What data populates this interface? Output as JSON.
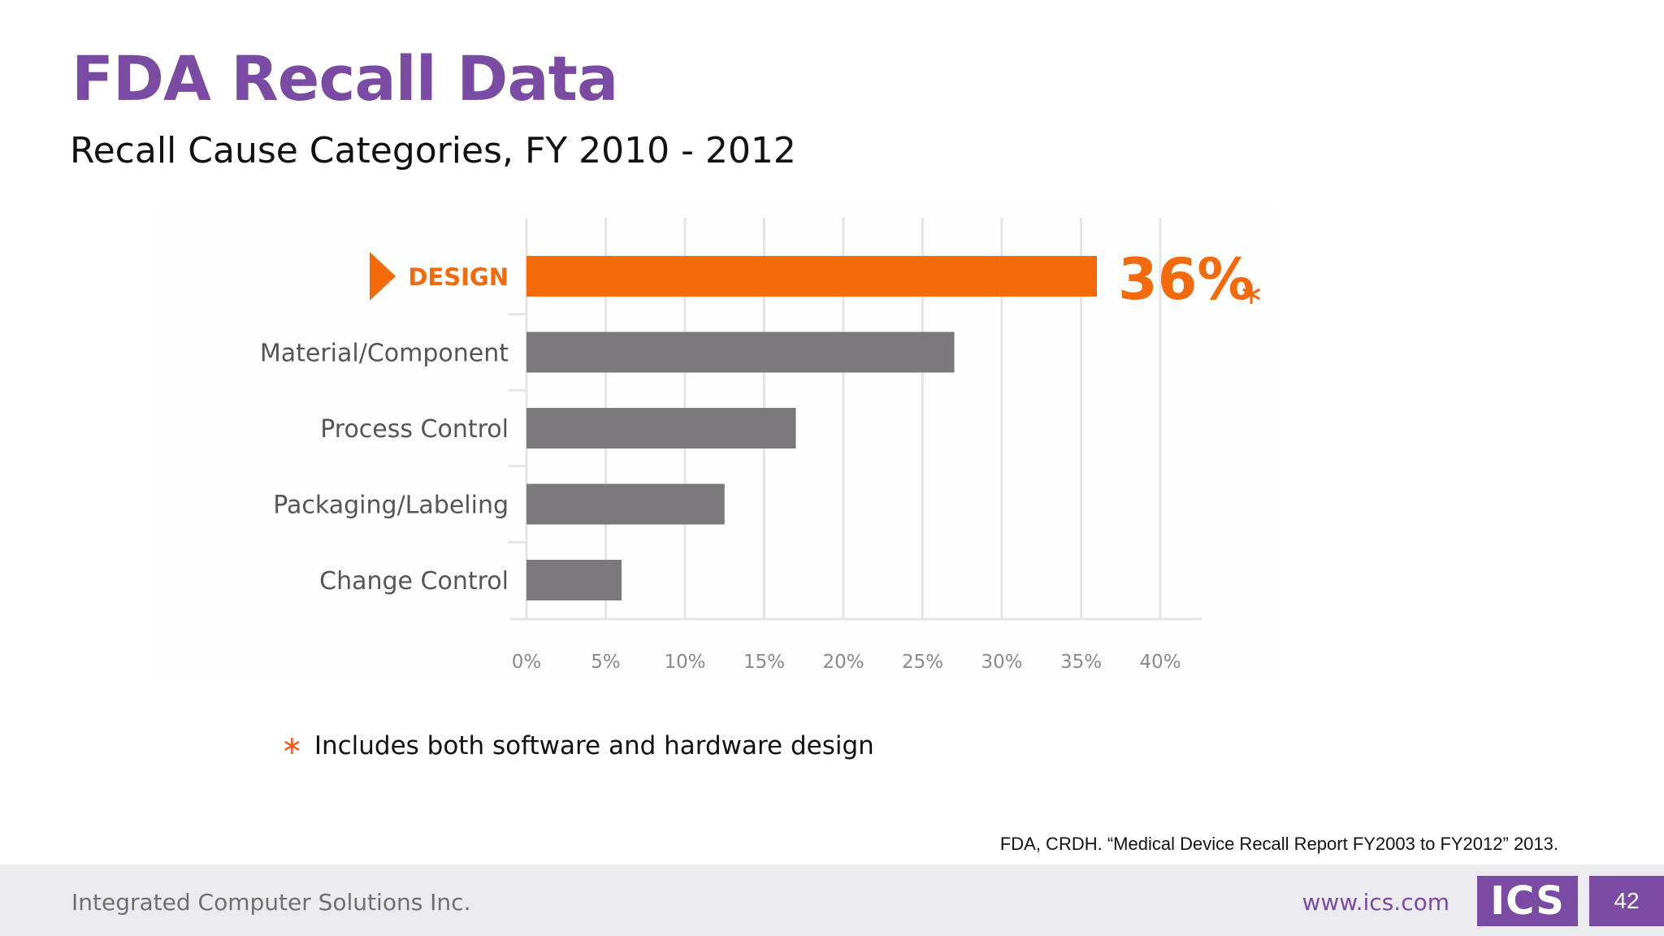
{
  "slide": {
    "title": "FDA Recall Data",
    "subtitle": "Recall Cause Categories, FY 2010 - 2012",
    "footnote_marker": "∗",
    "footnote_text": "Includes both software and hardware design",
    "citation": "FDA, CRDH. “Medical Device Recall Report FY2003 to FY2012” 2013."
  },
  "footer": {
    "company": "Integrated Computer Solutions Inc.",
    "url": "www.ics.com",
    "logo_text": "ICS",
    "page_number": "42"
  },
  "colors": {
    "accent_purple": "#7a4ba3",
    "highlight_orange": "#f26a0a",
    "bar_gray": "#7b797c",
    "grid": "#e6e4e8",
    "tick_text": "#8a8a8a"
  },
  "chart_data": {
    "type": "bar",
    "orientation": "horizontal",
    "categories": [
      "DESIGN",
      "Material/Component",
      "Process Control",
      "Packaging/Labeling",
      "Change Control"
    ],
    "values": [
      36,
      27,
      17,
      12.5,
      6
    ],
    "highlight_index": 0,
    "highlight_label": "36%",
    "highlight_marker": "∗",
    "xlim": [
      0,
      42
    ],
    "xticks": [
      0,
      5,
      10,
      15,
      20,
      25,
      30,
      35,
      40
    ],
    "xtick_labels": [
      "0%",
      "5%",
      "10%",
      "15%",
      "20%",
      "25%",
      "30%",
      "35%",
      "40%"
    ],
    "grid": true,
    "legend": "none"
  }
}
